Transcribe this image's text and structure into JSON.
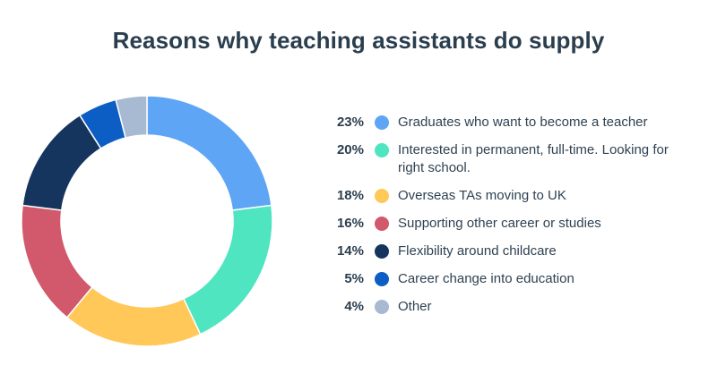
{
  "chart_data": {
    "type": "pie",
    "variant": "donut",
    "title": "Reasons why teaching assistants do supply",
    "legend_placement": "right",
    "slices": [
      {
        "pct_label": "23%",
        "value": 23,
        "label": "Graduates who want to become a teacher",
        "color": "#5ea6f5"
      },
      {
        "pct_label": "20%",
        "value": 20,
        "label": "Interested in permanent, full-time. Looking for right school.",
        "color": "#4fe5c0"
      },
      {
        "pct_label": "18%",
        "value": 18,
        "label": "Overseas TAs moving to UK",
        "color": "#ffc859"
      },
      {
        "pct_label": "16%",
        "value": 16,
        "label": "Supporting other career or studies",
        "color": "#d1596b"
      },
      {
        "pct_label": "14%",
        "value": 14,
        "label": "Flexibility around childcare",
        "color": "#16355e"
      },
      {
        "pct_label": "5%",
        "value": 5,
        "label": "Career change into education",
        "color": "#0c5ec4"
      },
      {
        "pct_label": "4%",
        "value": 4,
        "label": "Other",
        "color": "#a8b9d2"
      }
    ]
  }
}
